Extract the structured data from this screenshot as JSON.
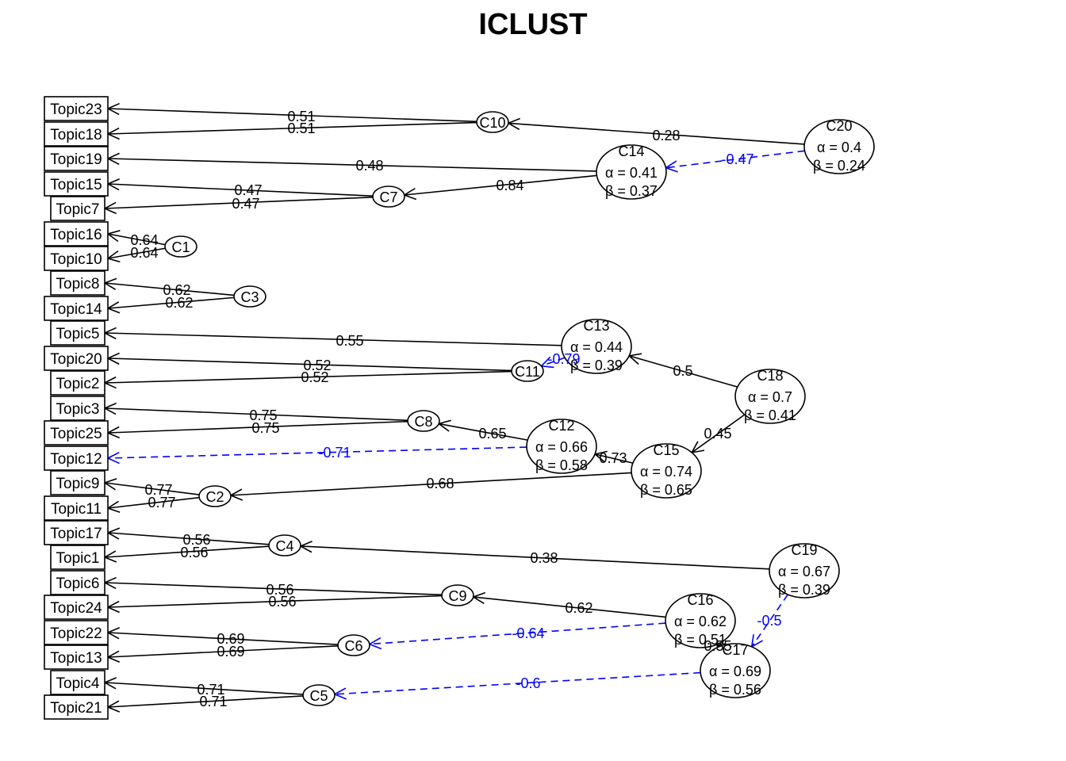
{
  "title": "ICLUST",
  "items": [
    {
      "id": "Topic23",
      "label": "Topic23"
    },
    {
      "id": "Topic18",
      "label": "Topic18"
    },
    {
      "id": "Topic19",
      "label": "Topic19"
    },
    {
      "id": "Topic15",
      "label": "Topic15"
    },
    {
      "id": "Topic7",
      "label": "Topic7"
    },
    {
      "id": "Topic16",
      "label": "Topic16"
    },
    {
      "id": "Topic10",
      "label": "Topic10"
    },
    {
      "id": "Topic8",
      "label": "Topic8"
    },
    {
      "id": "Topic14",
      "label": "Topic14"
    },
    {
      "id": "Topic5",
      "label": "Topic5"
    },
    {
      "id": "Topic20",
      "label": "Topic20"
    },
    {
      "id": "Topic2",
      "label": "Topic2"
    },
    {
      "id": "Topic3",
      "label": "Topic3"
    },
    {
      "id": "Topic25",
      "label": "Topic25"
    },
    {
      "id": "Topic12",
      "label": "Topic12"
    },
    {
      "id": "Topic9",
      "label": "Topic9"
    },
    {
      "id": "Topic11",
      "label": "Topic11"
    },
    {
      "id": "Topic17",
      "label": "Topic17"
    },
    {
      "id": "Topic1",
      "label": "Topic1"
    },
    {
      "id": "Topic6",
      "label": "Topic6"
    },
    {
      "id": "Topic24",
      "label": "Topic24"
    },
    {
      "id": "Topic22",
      "label": "Topic22"
    },
    {
      "id": "Topic13",
      "label": "Topic13"
    },
    {
      "id": "Topic4",
      "label": "Topic4"
    },
    {
      "id": "Topic21",
      "label": "Topic21"
    }
  ],
  "clusters": [
    {
      "id": "C1",
      "label": "C1"
    },
    {
      "id": "C2",
      "label": "C2"
    },
    {
      "id": "C3",
      "label": "C3"
    },
    {
      "id": "C4",
      "label": "C4"
    },
    {
      "id": "C5",
      "label": "C5"
    },
    {
      "id": "C6",
      "label": "C6"
    },
    {
      "id": "C7",
      "label": "C7"
    },
    {
      "id": "C8",
      "label": "C8"
    },
    {
      "id": "C9",
      "label": "C9"
    },
    {
      "id": "C10",
      "label": "C10"
    },
    {
      "id": "C11",
      "label": "C11"
    },
    {
      "id": "C12",
      "label": "C12",
      "alpha": "α = 0.66",
      "beta": "β = 0.58"
    },
    {
      "id": "C13",
      "label": "C13",
      "alpha": "α = 0.44",
      "beta": "β = 0.39"
    },
    {
      "id": "C14",
      "label": "C14",
      "alpha": "α = 0.41",
      "beta": "β = 0.37"
    },
    {
      "id": "C15",
      "label": "C15",
      "alpha": "α = 0.74",
      "beta": "β = 0.65"
    },
    {
      "id": "C16",
      "label": "C16",
      "alpha": "α = 0.62",
      "beta": "β = 0.51"
    },
    {
      "id": "C17",
      "label": "C17",
      "alpha": "α = 0.69",
      "beta": "β = 0.56"
    },
    {
      "id": "C18",
      "label": "C18",
      "alpha": "α = 0.7",
      "beta": "β = 0.41"
    },
    {
      "id": "C19",
      "label": "C19",
      "alpha": "α = 0.67",
      "beta": "β = 0.39"
    },
    {
      "id": "C20",
      "label": "C20",
      "alpha": "α = 0.4",
      "beta": "β = 0.24"
    }
  ],
  "edges": [
    {
      "from": "C10",
      "to": "Topic23",
      "value": "0.51",
      "negative": false
    },
    {
      "from": "C10",
      "to": "Topic18",
      "value": "0.51",
      "negative": false
    },
    {
      "from": "C20",
      "to": "C10",
      "value": "0.28",
      "negative": false
    },
    {
      "from": "C20",
      "to": "C14",
      "value": "-0.47",
      "negative": true
    },
    {
      "from": "C14",
      "to": "Topic19",
      "value": "0.48",
      "negative": false
    },
    {
      "from": "C14",
      "to": "C7",
      "value": "0.84",
      "negative": false
    },
    {
      "from": "C7",
      "to": "Topic15",
      "value": "0.47",
      "negative": false
    },
    {
      "from": "C7",
      "to": "Topic7",
      "value": "0.47",
      "negative": false
    },
    {
      "from": "C1",
      "to": "Topic16",
      "value": "0.64",
      "negative": false
    },
    {
      "from": "C1",
      "to": "Topic10",
      "value": "0.64",
      "negative": false
    },
    {
      "from": "C3",
      "to": "Topic8",
      "value": "0.62",
      "negative": false
    },
    {
      "from": "C3",
      "to": "Topic14",
      "value": "0.62",
      "negative": false
    },
    {
      "from": "C13",
      "to": "Topic5",
      "value": "0.55",
      "negative": false
    },
    {
      "from": "C13",
      "to": "C11",
      "value": "-0.79",
      "negative": true
    },
    {
      "from": "C11",
      "to": "Topic20",
      "value": "0.52",
      "negative": false
    },
    {
      "from": "C11",
      "to": "Topic2",
      "value": "0.52",
      "negative": false
    },
    {
      "from": "C18",
      "to": "C13",
      "value": "0.5",
      "negative": false
    },
    {
      "from": "C18",
      "to": "C15",
      "value": "0.45",
      "negative": false
    },
    {
      "from": "C8",
      "to": "Topic3",
      "value": "0.75",
      "negative": false
    },
    {
      "from": "C8",
      "to": "Topic25",
      "value": "0.75",
      "negative": false
    },
    {
      "from": "C12",
      "to": "C8",
      "value": "0.65",
      "negative": false
    },
    {
      "from": "C12",
      "to": "Topic12",
      "value": "-0.71",
      "negative": true
    },
    {
      "from": "C15",
      "to": "C12",
      "value": "0.73",
      "negative": false
    },
    {
      "from": "C15",
      "to": "C2",
      "value": "0.68",
      "negative": false
    },
    {
      "from": "C2",
      "to": "Topic9",
      "value": "0.77",
      "negative": false
    },
    {
      "from": "C2",
      "to": "Topic11",
      "value": "0.77",
      "negative": false
    },
    {
      "from": "C4",
      "to": "Topic17",
      "value": "0.56",
      "negative": false
    },
    {
      "from": "C4",
      "to": "Topic1",
      "value": "0.56",
      "negative": false
    },
    {
      "from": "C19",
      "to": "C4",
      "value": "0.38",
      "negative": false
    },
    {
      "from": "C19",
      "to": "C17",
      "value": "-0.5",
      "negative": true
    },
    {
      "from": "C9",
      "to": "Topic6",
      "value": "0.56",
      "negative": false
    },
    {
      "from": "C9",
      "to": "Topic24",
      "value": "0.56",
      "negative": false
    },
    {
      "from": "C16",
      "to": "C9",
      "value": "0.62",
      "negative": false
    },
    {
      "from": "C16",
      "to": "C6",
      "value": "-0.64",
      "negative": true
    },
    {
      "from": "C6",
      "to": "Topic22",
      "value": "0.69",
      "negative": false
    },
    {
      "from": "C6",
      "to": "Topic13",
      "value": "0.69",
      "negative": false
    },
    {
      "from": "C17",
      "to": "C16",
      "value": "0.55",
      "negative": false
    },
    {
      "from": "C17",
      "to": "C5",
      "value": "-0.6",
      "negative": true
    },
    {
      "from": "C5",
      "to": "Topic4",
      "value": "0.71",
      "negative": false
    },
    {
      "from": "C5",
      "to": "Topic21",
      "value": "0.71",
      "negative": false
    }
  ],
  "colors": {
    "positive": "#000000",
    "negative": "#0000ff"
  }
}
